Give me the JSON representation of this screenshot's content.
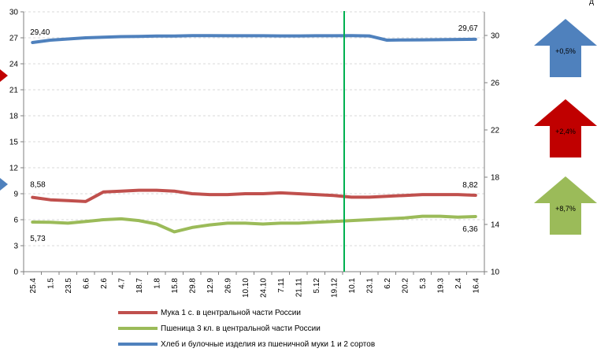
{
  "chart_data": {
    "type": "line",
    "categories": [
      "25.4",
      "1.5",
      "23.5",
      "6.6",
      "2.6",
      "4.7",
      "18.7",
      "1.8",
      "15.8",
      "29.8",
      "12.9",
      "26.9",
      "10.10",
      "24.10",
      "7.11",
      "21.11",
      "5.12",
      "19.12",
      "10.1",
      "23.1",
      "6.2",
      "20.2",
      "5.3",
      "19.3",
      "2.4",
      "16.4"
    ],
    "marker_after_index": 17,
    "left_axis": {
      "min": 0,
      "max": 30,
      "ticks": [
        "0",
        "3",
        "6",
        "9",
        "12",
        "15",
        "18",
        "21",
        "24",
        "27",
        "30"
      ]
    },
    "right_axis": {
      "min": 10,
      "max": 32,
      "ticks": [
        "10",
        "14",
        "18",
        "22",
        "26",
        "30"
      ]
    },
    "series": [
      {
        "name": "Мука 1 с. в центральной части России",
        "axis": "left",
        "color": "#c0504d",
        "values": [
          8.58,
          8.3,
          8.2,
          8.1,
          9.2,
          9.3,
          9.4,
          9.4,
          9.3,
          9.0,
          8.9,
          8.9,
          9.0,
          9.0,
          9.1,
          9.0,
          8.9,
          8.8,
          8.6,
          8.6,
          8.7,
          8.8,
          8.9,
          8.9,
          8.9,
          8.82
        ],
        "start_label": "8,58",
        "end_label": "8,82"
      },
      {
        "name": "Пшеница 3 кл. в центральной части России",
        "axis": "left",
        "color": "#9bbb59",
        "values": [
          5.73,
          5.7,
          5.6,
          5.8,
          6.0,
          6.1,
          5.9,
          5.5,
          4.6,
          5.1,
          5.4,
          5.6,
          5.6,
          5.5,
          5.6,
          5.6,
          5.7,
          5.8,
          5.9,
          6.0,
          6.1,
          6.2,
          6.4,
          6.4,
          6.3,
          6.36
        ],
        "start_label": "5,73",
        "end_label": "6,36"
      },
      {
        "name": "Хлеб и булочные изделия из пшеничной муки 1 и 2 сортов",
        "axis": "right",
        "color": "#4f81bd",
        "values": [
          29.4,
          29.6,
          29.7,
          29.8,
          29.85,
          29.9,
          29.92,
          29.95,
          29.95,
          29.98,
          29.98,
          29.97,
          29.97,
          29.97,
          29.96,
          29.96,
          29.97,
          29.97,
          29.98,
          29.96,
          29.6,
          29.62,
          29.63,
          29.64,
          29.66,
          29.67
        ],
        "start_label": "29,40",
        "end_label": "29,67"
      }
    ]
  },
  "arrows": [
    {
      "label": "+0,5%",
      "color": "#4f81bd"
    },
    {
      "label": "+2,4%",
      "color": "#c00000"
    },
    {
      "label": "+8,7%",
      "color": "#9bbb59"
    }
  ],
  "corner_text": "д",
  "colors": {
    "marker_line": "#00b050",
    "axis": "#7f7f7f"
  }
}
